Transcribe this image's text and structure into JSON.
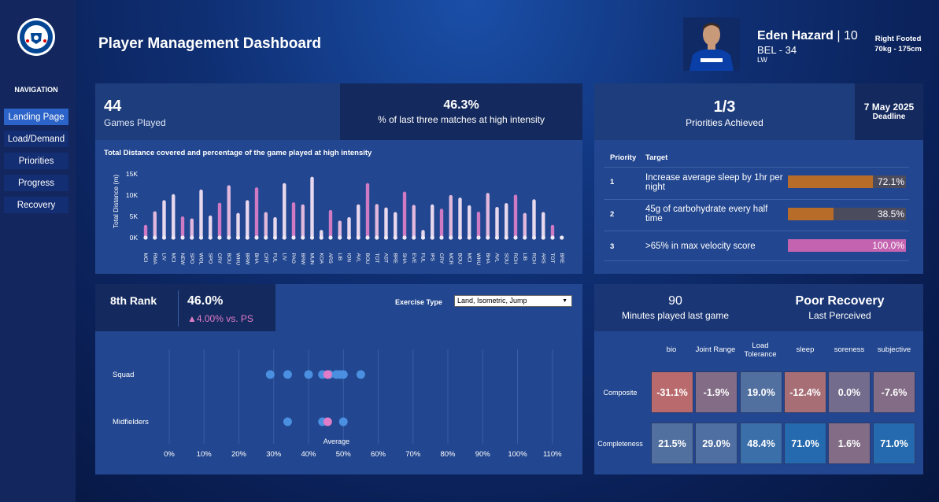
{
  "colors": {
    "accent": "#2b63c8",
    "bar_dark": "#b8d6f5",
    "bar_mid": "#e6b8e0",
    "bar_pink": "#d07ac4",
    "dot_blue": "#4a8fe0",
    "dot_pink": "#e07cc8"
  },
  "header": {
    "title": "Player Management Dashboard"
  },
  "player": {
    "name": "Eden Hazard",
    "number": "| 10",
    "country": "BEL - 34",
    "position": "LW",
    "footed": "Right Footed",
    "physique": "70kg - 175cm"
  },
  "nav": {
    "heading": "NAVIGATION",
    "items": [
      "Landing Page",
      "Load/Demand",
      "Priorities",
      "Progress",
      "Recovery"
    ]
  },
  "games": {
    "value": "44",
    "label": "Games Played"
  },
  "intensity": {
    "value": "46.3%",
    "label": "% of last three matches at high intensity"
  },
  "chart_data": {
    "type": "bar",
    "title": "Total Distance covered and percentage of the game played at high intensity",
    "ylabel": "Total Distance (m)",
    "ylim": [
      0,
      17000
    ],
    "yticks": [
      "15K",
      "10K",
      "5K",
      "0K"
    ],
    "categories": [
      "MCI",
      "RMA",
      "LIV",
      "MCI",
      "NEW",
      "SPO",
      "WOL",
      "SPO",
      "CRY",
      "BOU",
      "WHU",
      "BRW",
      "BHA",
      "CRT",
      "FUL",
      "LIV",
      "PAO",
      "BRW",
      "MUN",
      "KOA",
      "ARS",
      "LIB",
      "ION",
      "AVL",
      "BOU",
      "TOT",
      "AST",
      "BRE",
      "SHA",
      "EVE",
      "FUL",
      "IPS",
      "CRY",
      "MCR",
      "BOU",
      "MCI",
      "WHU",
      "BHA",
      "AVL",
      "SOU",
      "RCH",
      "LIB",
      "RCH",
      "ARS",
      "TOT",
      "BRE"
    ],
    "values": [
      3000,
      6200,
      8800,
      10200,
      5000,
      4500,
      11300,
      5200,
      8200,
      12300,
      5800,
      8800,
      11800,
      6000,
      4800,
      12800,
      8300,
      7800,
      14300,
      1800,
      6500,
      4000,
      4800,
      7800,
      12800,
      7900,
      7100,
      6000,
      10800,
      7700,
      1800,
      7800,
      6800,
      10000,
      9400,
      7600,
      6100,
      10500,
      7200,
      8100,
      10100,
      5800,
      9000,
      6000,
      3000,
      0
    ]
  },
  "priorities": {
    "achieved_value": "1/3",
    "achieved_label": "Priorities Achieved",
    "deadline_value": "7 May 2025",
    "deadline_label": "Deadline",
    "col_priority": "Priority",
    "col_target": "Target",
    "rows": [
      {
        "num": "1",
        "text": "Increase average sleep by 1hr per night",
        "pct": 72.1,
        "label": "72.1%",
        "color": "#b86c2a"
      },
      {
        "num": "2",
        "text": "45g of carbohydrate every half time",
        "pct": 38.5,
        "label": "38.5%",
        "color": "#b86c2a"
      },
      {
        "num": "3",
        "text": ">65% in max velocity score",
        "pct": 100,
        "label": "100.0%",
        "color": "#c464b0"
      }
    ]
  },
  "rank": {
    "value": "8th Rank",
    "pct": "46.0%",
    "change": "▲4.00% vs. PS"
  },
  "exercise": {
    "label": "Exercise Type",
    "selected": "Land, Isometric, Jump"
  },
  "dot_plot": {
    "rows": [
      {
        "label": "Squad",
        "values": [
          29,
          34,
          40,
          44,
          46,
          48,
          49,
          50,
          55
        ],
        "player": 45.5
      },
      {
        "label": "Midfielders",
        "values": [
          34,
          44,
          50
        ],
        "player": 45.5
      }
    ],
    "x_ticks": [
      "0%",
      "10%",
      "20%",
      "30%",
      "40%",
      "50%",
      "60%",
      "70%",
      "80%",
      "90%",
      "100%",
      "110%"
    ],
    "avg_label": "Average"
  },
  "recovery": {
    "minutes_value": "90",
    "minutes_label": "Minutes played last game",
    "status_value": "Poor Recovery",
    "status_label": "Last Perceived",
    "columns": [
      "bio",
      "Joint Range",
      "Load Tolerance",
      "sleep",
      "soreness",
      "subjective"
    ],
    "rows": [
      {
        "label": "Composite",
        "values": [
          "-31.1%",
          "-1.9%",
          "19.0%",
          "-12.4%",
          "0.0%",
          "-7.6%"
        ],
        "colors": [
          "#b86a6c",
          "#836c86",
          "#52709f",
          "#a86e75",
          "#736c8c",
          "#836c86"
        ]
      },
      {
        "label": "Completeness",
        "values": [
          "21.5%",
          "29.0%",
          "48.4%",
          "71.0%",
          "1.6%",
          "71.0%"
        ],
        "colors": [
          "#52709f",
          "#4f6fa2",
          "#3a6fa9",
          "#256aae",
          "#836c86",
          "#256aae"
        ]
      }
    ]
  }
}
